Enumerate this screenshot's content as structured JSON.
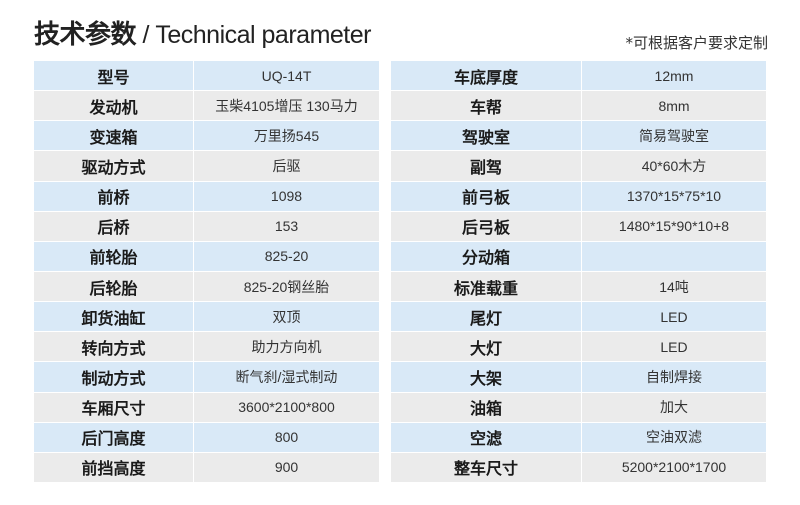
{
  "title": {
    "cn": "技术参数",
    "sep": " / ",
    "en": "Technical parameter"
  },
  "note": "*可根据客户要求定制",
  "left": [
    [
      "型号",
      "UQ-14T"
    ],
    [
      "发动机",
      "玉柴4105增压  130马力"
    ],
    [
      "变速箱",
      "万里扬545"
    ],
    [
      "驱动方式",
      "后驱"
    ],
    [
      "前桥",
      "1098"
    ],
    [
      "后桥",
      "153"
    ],
    [
      "前轮胎",
      "825-20"
    ],
    [
      "后轮胎",
      "825-20钢丝胎"
    ],
    [
      "卸货油缸",
      "双顶"
    ],
    [
      "转向方式",
      "助力方向机"
    ],
    [
      "制动方式",
      "断气刹/湿式制动"
    ],
    [
      "车厢尺寸",
      "3600*2100*800"
    ],
    [
      "后门高度",
      "800"
    ],
    [
      "前挡高度",
      "900"
    ]
  ],
  "right": [
    [
      "车底厚度",
      "12mm"
    ],
    [
      "车帮",
      "8mm"
    ],
    [
      "驾驶室",
      "简易驾驶室"
    ],
    [
      "副驾",
      "40*60木方"
    ],
    [
      "前弓板",
      "1370*15*75*10"
    ],
    [
      "后弓板",
      "1480*15*90*10+8"
    ],
    [
      "分动箱",
      ""
    ],
    [
      "标准载重",
      "14吨"
    ],
    [
      "尾灯",
      "LED"
    ],
    [
      "大灯",
      "LED"
    ],
    [
      "大架",
      "自制焊接"
    ],
    [
      "油箱",
      "加大"
    ],
    [
      "空滤",
      "空油双滤"
    ],
    [
      "整车尺寸",
      "5200*2100*1700"
    ]
  ]
}
